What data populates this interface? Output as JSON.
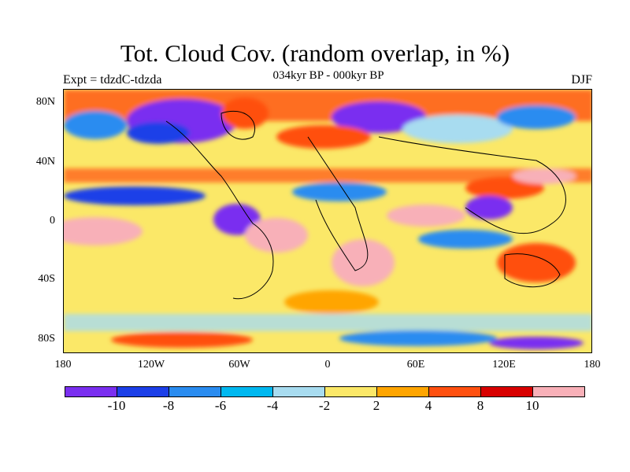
{
  "title": "Tot. Cloud Cov. (random overlap, in %)",
  "subtitle": "034kyr BP - 000kyr BP",
  "experiment": "Expt = tdzdC-tdzda",
  "season": "DJF",
  "lat_ticks": [
    "80N",
    "40N",
    "0",
    "40S",
    "80S"
  ],
  "lon_ticks": [
    "180",
    "120W",
    "60W",
    "0",
    "60E",
    "120E",
    "180"
  ],
  "colorbar": {
    "colors": [
      "#7a2ff0",
      "#1c3fe8",
      "#2a8cf0",
      "#00b8f0",
      "#a8dcf0",
      "#fbe868",
      "#ffa500",
      "#ff5010",
      "#d80000",
      "#f8b0b8"
    ],
    "labels": [
      "-10",
      "-8",
      "-6",
      "-4",
      "-2",
      "2",
      "4",
      "8",
      "10"
    ]
  }
}
